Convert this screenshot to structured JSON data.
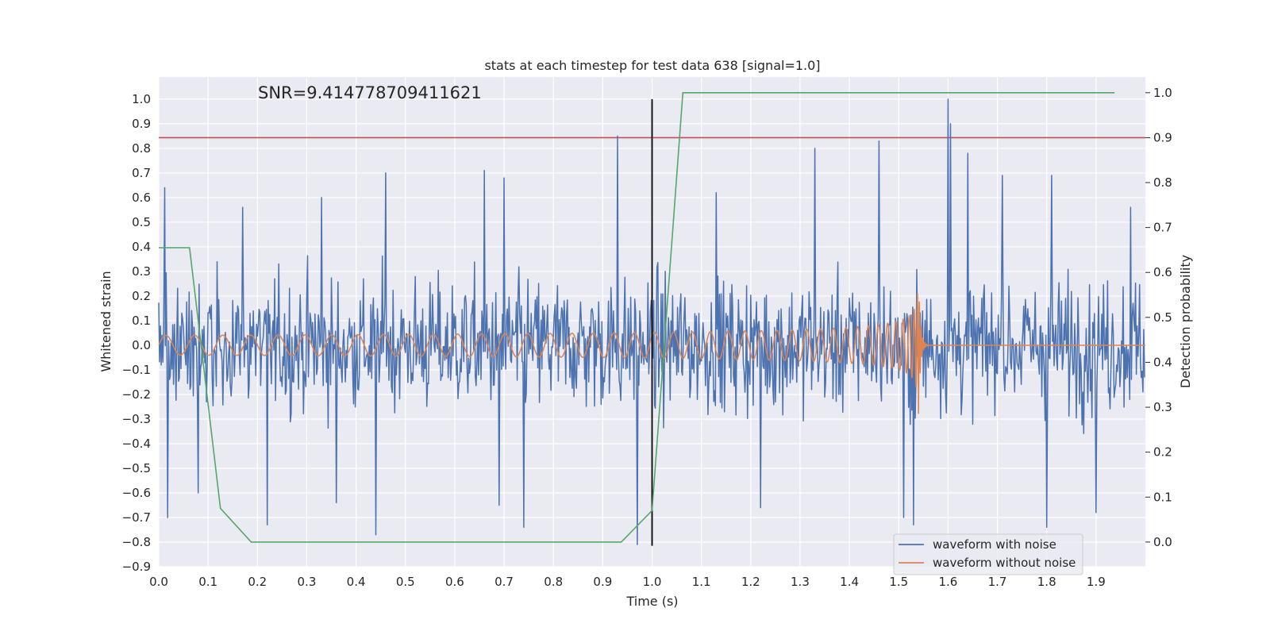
{
  "chart_data": {
    "type": "line",
    "title": "stats at each timestep for test data 638 [signal=1.0]",
    "annotation": "SNR=9.414778709411621",
    "xlabel": "Time (s)",
    "ylabel": "Whitened strain",
    "ylabel_right": "Detection probability",
    "xlim": [
      0.0,
      2.0
    ],
    "ylim": [
      -0.9,
      1.09
    ],
    "ylim_right": [
      -0.055,
      1.035
    ],
    "xticks": [
      "0.0",
      "0.1",
      "0.2",
      "0.3",
      "0.4",
      "0.5",
      "0.6",
      "0.7",
      "0.8",
      "0.9",
      "1.0",
      "1.1",
      "1.2",
      "1.3",
      "1.4",
      "1.5",
      "1.6",
      "1.7",
      "1.8",
      "1.9"
    ],
    "yticks": [
      "1.0",
      "0.9",
      "0.8",
      "0.7",
      "0.6",
      "0.5",
      "0.4",
      "0.3",
      "0.2",
      "0.1",
      "0.0",
      "−0.1",
      "−0.2",
      "−0.3",
      "−0.4",
      "−0.5",
      "−0.6",
      "−0.7",
      "−0.8",
      "−0.9"
    ],
    "yticks_right": [
      "1.0",
      "0.9",
      "0.8",
      "0.7",
      "0.6",
      "0.5",
      "0.4",
      "0.3",
      "0.2",
      "0.1",
      "0.0"
    ],
    "threshold_right": 0.9,
    "marker_x": 1.0,
    "marker_y_range": [
      -0.815,
      1.0
    ],
    "series": [
      {
        "name": "waveform with noise",
        "color": "#4c72b0",
        "axis": "left",
        "kind": "noise",
        "amplitude": 0.3
      },
      {
        "name": "waveform without noise",
        "color": "#dd8452",
        "axis": "left",
        "kind": "chirp",
        "start_freq_hz": 17,
        "merger_time_s": 1.54,
        "start_amplitude": 0.04,
        "peak_amplitude": 0.35
      },
      {
        "name": "detection probability",
        "color": "#55a868",
        "axis": "right",
        "x": [
          0.0,
          0.0625,
          0.125,
          0.1875,
          0.9375,
          1.0,
          1.0625,
          1.9375
        ],
        "y": [
          0.655,
          0.655,
          0.075,
          0.0,
          0.0,
          0.07,
          1.0,
          1.0
        ]
      }
    ],
    "spikes": [
      {
        "x": 0.012,
        "y": 0.64
      },
      {
        "x": 0.018,
        "y": -0.7
      },
      {
        "x": 0.08,
        "y": -0.6
      },
      {
        "x": 0.17,
        "y": 0.56
      },
      {
        "x": 0.22,
        "y": -0.73
      },
      {
        "x": 0.33,
        "y": 0.6
      },
      {
        "x": 0.36,
        "y": -0.64
      },
      {
        "x": 0.44,
        "y": -0.77
      },
      {
        "x": 0.46,
        "y": 0.7
      },
      {
        "x": 0.66,
        "y": 0.71
      },
      {
        "x": 0.69,
        "y": -0.65
      },
      {
        "x": 0.7,
        "y": 0.68
      },
      {
        "x": 0.74,
        "y": -0.74
      },
      {
        "x": 0.93,
        "y": 0.85
      },
      {
        "x": 0.97,
        "y": -0.81
      },
      {
        "x": 1.13,
        "y": 0.62
      },
      {
        "x": 1.22,
        "y": -0.66
      },
      {
        "x": 1.33,
        "y": 0.8
      },
      {
        "x": 1.46,
        "y": 0.83
      },
      {
        "x": 1.51,
        "y": -0.7
      },
      {
        "x": 1.53,
        "y": -0.73
      },
      {
        "x": 1.6,
        "y": 1.0
      },
      {
        "x": 1.605,
        "y": 0.9
      },
      {
        "x": 1.64,
        "y": 0.78
      },
      {
        "x": 1.71,
        "y": 0.69
      },
      {
        "x": 1.8,
        "y": -0.74
      },
      {
        "x": 1.81,
        "y": 0.69
      },
      {
        "x": 1.9,
        "y": -0.68
      },
      {
        "x": 1.97,
        "y": 0.56
      }
    ],
    "legend": [
      {
        "label": "waveform with noise",
        "color": "#4c72b0"
      },
      {
        "label": "waveform without noise",
        "color": "#dd8452"
      }
    ],
    "legend_position": "lower-right",
    "grid": true
  }
}
